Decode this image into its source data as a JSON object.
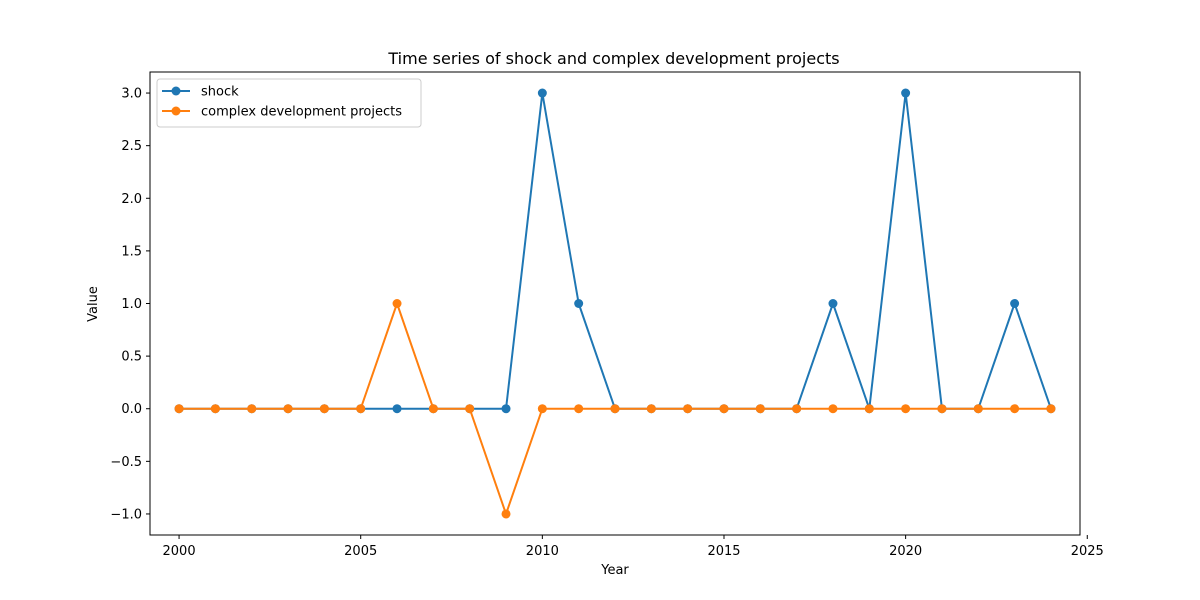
{
  "chart_data": {
    "type": "line",
    "title": "Time series of shock and complex development projects",
    "xlabel": "Year",
    "ylabel": "Value",
    "xlim": [
      1999.2,
      2024.8
    ],
    "ylim": [
      -1.2,
      3.2
    ],
    "xticks": [
      2000,
      2005,
      2010,
      2015,
      2020,
      2025
    ],
    "yticks": [
      -1.0,
      -0.5,
      0.0,
      0.5,
      1.0,
      1.5,
      2.0,
      2.5,
      3.0
    ],
    "xtick_labels": [
      "2000",
      "2005",
      "2010",
      "2015",
      "2020",
      "2025"
    ],
    "ytick_labels": [
      "−1.0",
      "−0.5",
      "0.0",
      "0.5",
      "1.0",
      "1.5",
      "2.0",
      "2.5",
      "3.0"
    ],
    "grid": false,
    "legend_position": "top-left",
    "x": [
      2000,
      2001,
      2002,
      2003,
      2004,
      2005,
      2006,
      2007,
      2008,
      2009,
      2010,
      2011,
      2012,
      2013,
      2014,
      2015,
      2016,
      2017,
      2018,
      2019,
      2020,
      2021,
      2022,
      2023,
      2024
    ],
    "series": [
      {
        "name": "shock",
        "color": "#1f77b4",
        "values": [
          0,
          0,
          0,
          0,
          0,
          0,
          0,
          0,
          0,
          0,
          3,
          1,
          0,
          0,
          0,
          0,
          0,
          0,
          1,
          0,
          3,
          0,
          0,
          1,
          0
        ]
      },
      {
        "name": "complex development projects",
        "color": "#ff7f0e",
        "values": [
          0,
          0,
          0,
          0,
          0,
          0,
          1,
          0,
          0,
          -1,
          0,
          0,
          0,
          0,
          0,
          0,
          0,
          0,
          0,
          0,
          0,
          0,
          0,
          0,
          0
        ]
      }
    ]
  }
}
